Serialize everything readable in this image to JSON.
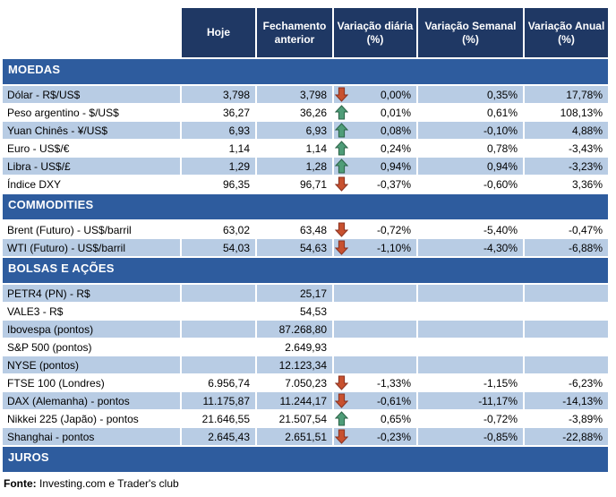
{
  "colors": {
    "header_bg": "#1F3864",
    "section_bg": "#2E5C9E",
    "row_shaded": "#B8CCE4",
    "arrow_up_fill": "#4F9D78",
    "arrow_up_stroke": "#2B6448",
    "arrow_down_fill": "#C8512F",
    "arrow_down_stroke": "#8A3220"
  },
  "table": {
    "columns": [
      "Hoje",
      "Fechamento anterior",
      "Variação diária (%)",
      "Variação Semanal (%)",
      "Variação Anual (%)"
    ],
    "sections": [
      {
        "title": "MOEDAS",
        "first_row_shaded": true,
        "rows": [
          {
            "label": "Dólar - R$/US$",
            "hoje": "3,798",
            "fechamento": "3,798",
            "arrow": "down",
            "diaria": "0,00%",
            "semanal": "0,35%",
            "anual": "17,78%"
          },
          {
            "label": "Peso argentino - $/US$",
            "hoje": "36,27",
            "fechamento": "36,26",
            "arrow": "up",
            "diaria": "0,01%",
            "semanal": "0,61%",
            "anual": "108,13%"
          },
          {
            "label": "Yuan Chinês - ¥/US$",
            "hoje": "6,93",
            "fechamento": "6,93",
            "arrow": "up",
            "diaria": "0,08%",
            "semanal": "-0,10%",
            "anual": "4,88%"
          },
          {
            "label": "Euro - US$/€",
            "hoje": "1,14",
            "fechamento": "1,14",
            "arrow": "up",
            "diaria": "0,24%",
            "semanal": "0,78%",
            "anual": "-3,43%"
          },
          {
            "label": "Libra - US$/£",
            "hoje": "1,29",
            "fechamento": "1,28",
            "arrow": "up",
            "diaria": "0,94%",
            "semanal": "0,94%",
            "anual": "-3,23%"
          },
          {
            "label": "Índice DXY",
            "hoje": "96,35",
            "fechamento": "96,71",
            "arrow": "down",
            "diaria": "-0,37%",
            "semanal": "-0,60%",
            "anual": "3,36%"
          }
        ]
      },
      {
        "title": "COMMODITIES",
        "first_row_shaded": false,
        "rows": [
          {
            "label": "Brent (Futuro) - US$/barril",
            "hoje": "63,02",
            "fechamento": "63,48",
            "arrow": "down",
            "diaria": "-0,72%",
            "semanal": "-5,40%",
            "anual": "-0,47%"
          },
          {
            "label": "WTI (Futuro) - US$/barril",
            "hoje": "54,03",
            "fechamento": "54,63",
            "arrow": "down",
            "diaria": "-1,10%",
            "semanal": "-4,30%",
            "anual": "-6,88%"
          }
        ]
      },
      {
        "title": "BOLSAS E AÇÕES",
        "first_row_shaded": true,
        "rows": [
          {
            "label": "PETR4 (PN) - R$",
            "hoje": "",
            "fechamento": "25,17",
            "arrow": null,
            "diaria": "",
            "semanal": "",
            "anual": ""
          },
          {
            "label": "VALE3 - R$",
            "hoje": "",
            "fechamento": "54,53",
            "arrow": null,
            "diaria": "",
            "semanal": "",
            "anual": ""
          },
          {
            "label": "Ibovespa (pontos)",
            "hoje": "",
            "fechamento": "87.268,80",
            "arrow": null,
            "diaria": "",
            "semanal": "",
            "anual": ""
          },
          {
            "label": "S&P 500 (pontos)",
            "hoje": "",
            "fechamento": "2.649,93",
            "arrow": null,
            "diaria": "",
            "semanal": "",
            "anual": ""
          },
          {
            "label": "NYSE (pontos)",
            "hoje": "",
            "fechamento": "12.123,34",
            "arrow": null,
            "diaria": "",
            "semanal": "",
            "anual": ""
          },
          {
            "label": "FTSE 100 (Londres)",
            "hoje": "6.956,74",
            "fechamento": "7.050,23",
            "arrow": "down",
            "diaria": "-1,33%",
            "semanal": "-1,15%",
            "anual": "-6,23%"
          },
          {
            "label": "DAX (Alemanha) - pontos",
            "hoje": "11.175,87",
            "fechamento": "11.244,17",
            "arrow": "down",
            "diaria": "-0,61%",
            "semanal": "-11,17%",
            "anual": "-14,13%"
          },
          {
            "label": "Nikkei 225 (Japão) - pontos",
            "hoje": "21.646,55",
            "fechamento": "21.507,54",
            "arrow": "up",
            "diaria": "0,65%",
            "semanal": "-0,72%",
            "anual": "-3,89%"
          },
          {
            "label": "Shanghai - pontos",
            "hoje": "2.645,43",
            "fechamento": "2.651,51",
            "arrow": "down",
            "diaria": "-0,23%",
            "semanal": "-0,85%",
            "anual": "-22,88%"
          }
        ]
      },
      {
        "title": "JUROS",
        "first_row_shaded": true,
        "rows": []
      }
    ]
  },
  "footer": {
    "label": "Fonte:",
    "text": " Investing.com e Trader's club"
  }
}
